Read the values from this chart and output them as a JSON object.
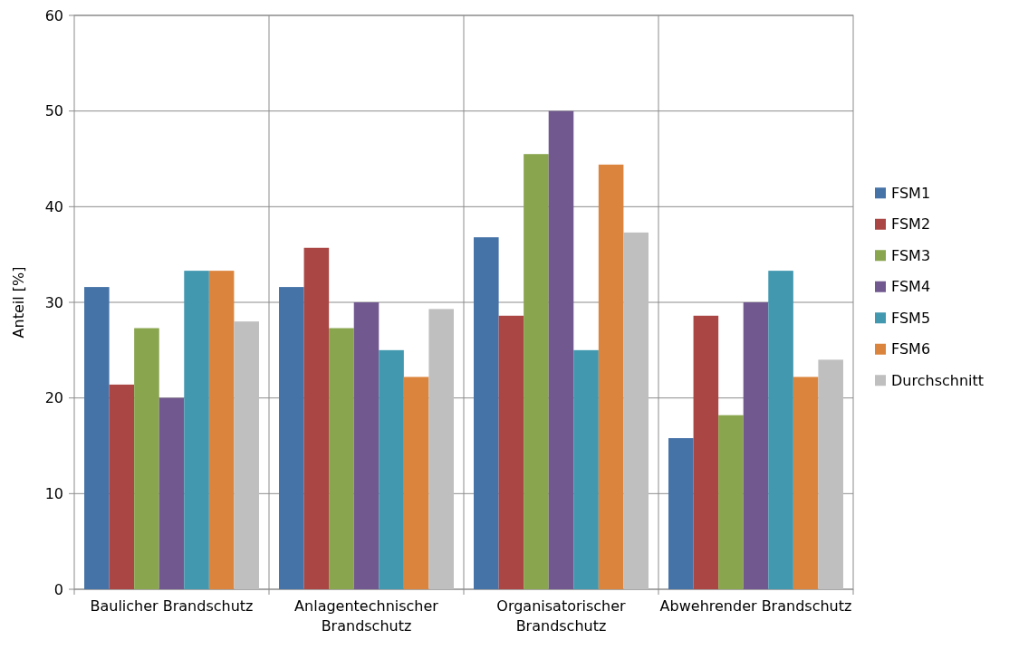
{
  "chart_data": {
    "type": "bar",
    "ylabel": "Anteil [%]",
    "categories": [
      "Baulicher Brandschutz",
      "Anlagentechnischer Brandschutz",
      "Organisatorischer Brandschutz",
      "Abwehrender Brandschutz"
    ],
    "series": [
      {
        "name": "FSM1",
        "color": "#4572a7",
        "values": [
          31.6,
          31.6,
          36.8,
          15.8
        ]
      },
      {
        "name": "FSM2",
        "color": "#aa4643",
        "values": [
          21.4,
          35.7,
          28.6,
          28.6
        ]
      },
      {
        "name": "FSM3",
        "color": "#89a54e",
        "values": [
          27.3,
          27.3,
          45.5,
          18.2
        ]
      },
      {
        "name": "FSM4",
        "color": "#71588f",
        "values": [
          20.0,
          30.0,
          50.0,
          30.0
        ]
      },
      {
        "name": "FSM5",
        "color": "#4198af",
        "values": [
          33.3,
          25.0,
          25.0,
          33.3
        ]
      },
      {
        "name": "FSM6",
        "color": "#db843d",
        "values": [
          33.3,
          22.2,
          44.4,
          22.2
        ]
      },
      {
        "name": "Durchschnitt",
        "color": "#bfbfbf",
        "values": [
          28.0,
          29.3,
          37.3,
          24.0
        ]
      }
    ],
    "ylim": [
      0,
      60
    ],
    "yticks": [
      0,
      10,
      20,
      30,
      40,
      50,
      60
    ],
    "grid": true,
    "legend": "right"
  }
}
